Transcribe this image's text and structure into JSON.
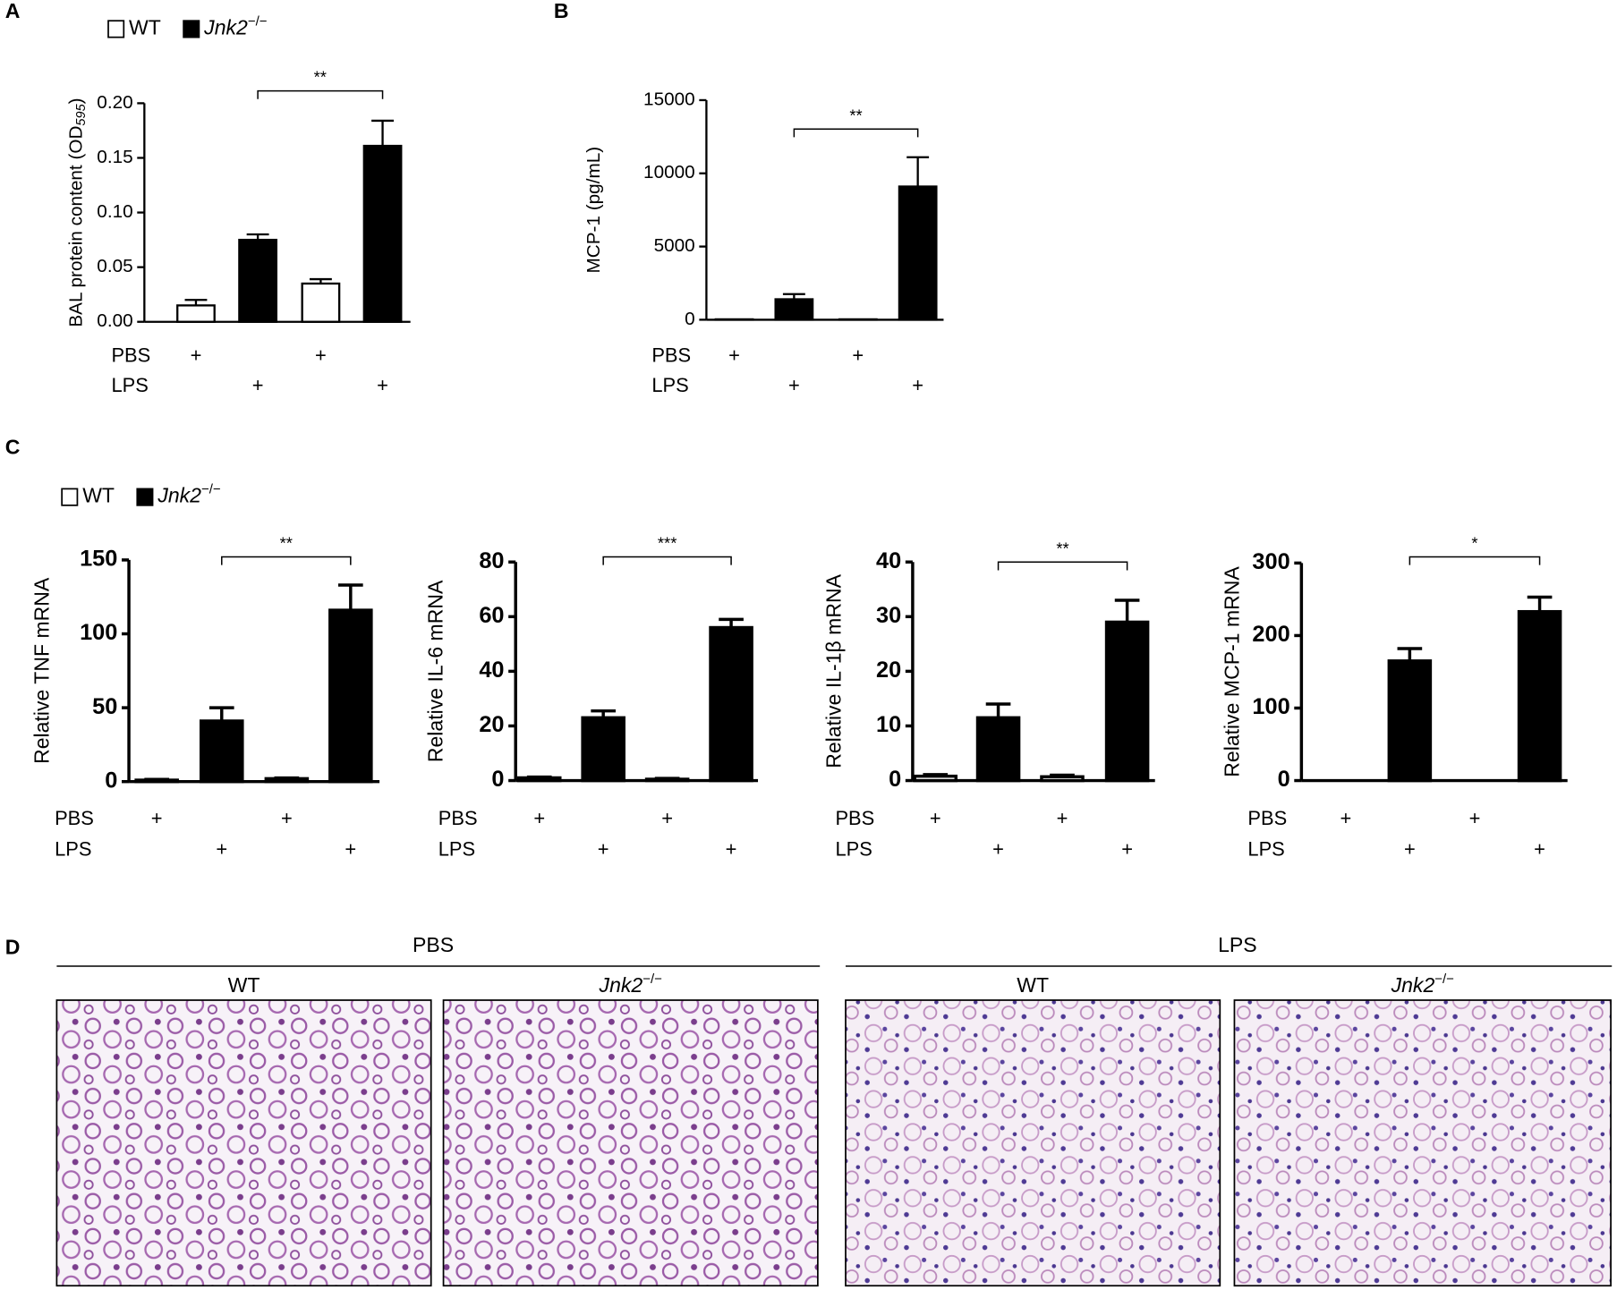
{
  "panel_labels": [
    "A",
    "B",
    "C",
    "D"
  ],
  "chart_data": [
    {
      "type": "bar",
      "ylabel": "BAL protein content (OD",
      "ylabel_sub": "595",
      "ylabel_end": ")",
      "legend": [
        {
          "label": "WT",
          "color": "#ffffff"
        },
        {
          "label": "Jnk2",
          "superscript": "−/−",
          "color": "#000000"
        }
      ],
      "categories": [
        null,
        null,
        null,
        null
      ],
      "values": [
        0.015,
        0.075,
        0.035,
        0.161
      ],
      "errors": [
        0.005,
        0.005,
        0.004,
        0.023
      ],
      "colors": [
        "#ffffff",
        "#000000",
        "#ffffff",
        "#000000"
      ],
      "conditions": [
        {
          "name": "PBS",
          "marks": [
            "+",
            null,
            "+",
            null
          ]
        },
        {
          "name": "LPS",
          "marks": [
            null,
            "+",
            null,
            "+"
          ]
        }
      ],
      "annotation": "**",
      "ylim": [
        0,
        0.2
      ],
      "yticks": [
        {
          "value": 0,
          "label": "0.00"
        },
        {
          "value": 0.05,
          "label": "0.05"
        },
        {
          "value": 0.1,
          "label": "0.10"
        },
        {
          "value": 0.15,
          "label": "0.15"
        },
        {
          "value": 0.2,
          "label": "0.20"
        }
      ]
    },
    {
      "type": "bar",
      "ylabel": "MCP-1 (pg/mL)",
      "categories": [
        null,
        null,
        null,
        null
      ],
      "values": [
        30,
        1400,
        30,
        9100
      ],
      "errors": [
        0,
        350,
        0,
        2000
      ],
      "colors": [
        "#ffffff",
        "#000000",
        "#ffffff",
        "#000000"
      ],
      "conditions": [
        {
          "name": "PBS",
          "marks": [
            "+",
            null,
            "+",
            null
          ]
        },
        {
          "name": "LPS",
          "marks": [
            null,
            "+",
            null,
            "+"
          ]
        }
      ],
      "annotation": "**",
      "ylim": [
        0,
        15000
      ],
      "yticks": [
        0,
        5000,
        10000,
        15000
      ]
    },
    {
      "type": "bar",
      "ylabel": "Relative TNF mRNA",
      "legend": [
        {
          "label": "WT",
          "color": "#ffffff"
        },
        {
          "label": "Jnk2",
          "superscript": "−/−",
          "color": "#000000"
        }
      ],
      "categories": [
        null,
        null,
        null,
        null
      ],
      "values": [
        1,
        41,
        2,
        116
      ],
      "errors": [
        0.5,
        9,
        0.5,
        17
      ],
      "colors": [
        "#ffffff",
        "#000000",
        "#ffffff",
        "#000000"
      ],
      "conditions": [
        {
          "name": "PBS",
          "marks": [
            "+",
            null,
            "+",
            null
          ]
        },
        {
          "name": "LPS",
          "marks": [
            null,
            "+",
            null,
            "+"
          ]
        }
      ],
      "annotation": "**",
      "ylim": [
        0,
        150
      ],
      "yticks": [
        0,
        50,
        100,
        150
      ]
    },
    {
      "type": "bar",
      "ylabel": "Relative IL-6 mRNA",
      "categories": [
        null,
        null,
        null,
        null
      ],
      "values": [
        1,
        23,
        0.5,
        56
      ],
      "errors": [
        0.3,
        2.5,
        0.3,
        3
      ],
      "colors": [
        "#ffffff",
        "#000000",
        "#ffffff",
        "#000000"
      ],
      "conditions": [
        {
          "name": "PBS",
          "marks": [
            "+",
            null,
            "+",
            null
          ]
        },
        {
          "name": "LPS",
          "marks": [
            null,
            "+",
            null,
            "+"
          ]
        }
      ],
      "annotation": "***",
      "ylim": [
        0,
        80
      ],
      "yticks": [
        0,
        20,
        40,
        60,
        80
      ]
    },
    {
      "type": "bar",
      "ylabel": "Relative IL-1β mRNA",
      "categories": [
        null,
        null,
        null,
        null
      ],
      "values": [
        0.8,
        11.5,
        0.7,
        29
      ],
      "errors": [
        0.3,
        2.5,
        0.3,
        4
      ],
      "colors": [
        "#ffffff",
        "#000000",
        "#ffffff",
        "#000000"
      ],
      "conditions": [
        {
          "name": "PBS",
          "marks": [
            "+",
            null,
            "+",
            null
          ]
        },
        {
          "name": "LPS",
          "marks": [
            null,
            "+",
            null,
            "+"
          ]
        }
      ],
      "annotation": "**",
      "ylim": [
        0,
        40
      ],
      "yticks": [
        0,
        10,
        20,
        30,
        40
      ]
    },
    {
      "type": "bar",
      "ylabel": "Relative MCP-1 mRNA",
      "categories": [
        null,
        null,
        null,
        null
      ],
      "values": [
        0,
        165,
        0,
        233
      ],
      "errors": [
        0,
        17,
        0,
        20
      ],
      "colors": [
        "#ffffff",
        "#000000",
        "#ffffff",
        "#000000"
      ],
      "conditions": [
        {
          "name": "PBS",
          "marks": [
            "+",
            null,
            "+",
            null
          ]
        },
        {
          "name": "LPS",
          "marks": [
            null,
            "+",
            null,
            "+"
          ]
        }
      ],
      "annotation": "*",
      "ylim": [
        0,
        300
      ],
      "yticks": [
        0,
        100,
        200,
        300
      ]
    }
  ],
  "histology": {
    "groups": [
      {
        "name": "PBS",
        "columns": [
          {
            "label": "WT"
          },
          {
            "label": "Jnk2",
            "superscript": "−/−"
          }
        ]
      },
      {
        "name": "LPS",
        "columns": [
          {
            "label": "WT"
          },
          {
            "label": "Jnk2",
            "superscript": "−/−"
          }
        ]
      }
    ]
  }
}
